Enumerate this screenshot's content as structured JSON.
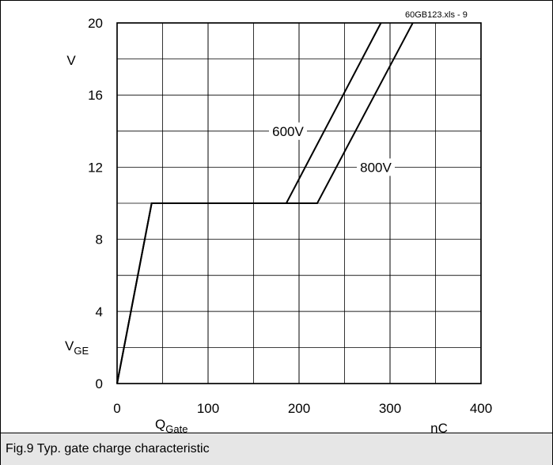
{
  "chart_data": {
    "type": "line",
    "file_label": "60GB123.xls  - 9",
    "xlabel_main": "Q",
    "xlabel_sub": "Gate",
    "xunit": "nC",
    "ylabel_main": "V",
    "ylabel_sub": "GE",
    "yunit": "V",
    "xlim": [
      0,
      400
    ],
    "ylim": [
      0,
      20
    ],
    "xticks": [
      0,
      100,
      200,
      300,
      400
    ],
    "yticks": [
      0,
      4,
      8,
      12,
      16,
      20
    ],
    "grid": true,
    "series": [
      {
        "name": "600V",
        "x": [
          0,
          38,
          186,
          290
        ],
        "y": [
          0,
          10,
          10,
          20
        ]
      },
      {
        "name": "800V",
        "x": [
          0,
          38,
          220,
          325
        ],
        "y": [
          0,
          10,
          10,
          20
        ]
      }
    ],
    "annotations": [
      {
        "text": "600V",
        "series": "600V"
      },
      {
        "text": "800V",
        "series": "800V"
      }
    ]
  },
  "caption": "Fig.9 Typ. gate charge characteristic"
}
